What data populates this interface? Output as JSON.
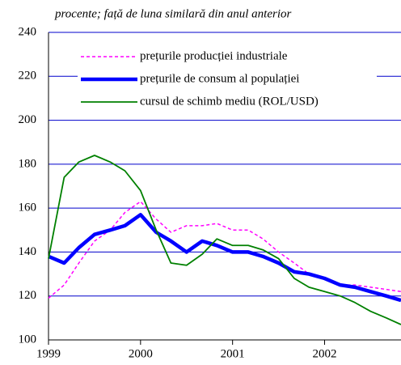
{
  "chart_data": {
    "type": "line",
    "subtitle": "procente; față de luna similară din anul anterior",
    "x": [
      1999.0,
      1999.17,
      1999.33,
      1999.5,
      1999.67,
      1999.83,
      2000.0,
      2000.17,
      2000.33,
      2000.5,
      2000.67,
      2000.83,
      2001.0,
      2001.17,
      2001.33,
      2001.5,
      2001.67,
      2001.83,
      2002.0,
      2002.17,
      2002.33,
      2002.5,
      2002.67,
      2002.83
    ],
    "series": [
      {
        "name": "prețurile producției industriale",
        "color": "#ff00ff",
        "style": "dashed",
        "values": [
          119,
          125,
          135,
          145,
          150,
          158,
          163,
          155,
          149,
          152,
          152,
          153,
          150,
          150,
          146,
          140,
          135,
          130,
          128,
          125,
          125,
          124,
          123,
          122
        ]
      },
      {
        "name": "prețurile de consum al populației",
        "color": "#0000ff",
        "style": "thick",
        "values": [
          138,
          135,
          142,
          148,
          150,
          152,
          157,
          149,
          145,
          140,
          145,
          143,
          140,
          140,
          138,
          135,
          131,
          130,
          128,
          125,
          124,
          122,
          120,
          118
        ]
      },
      {
        "name": "cursul de schimb mediu (ROL/USD)",
        "color": "#008000",
        "style": "solid",
        "values": [
          137,
          174,
          181,
          184,
          181,
          177,
          168,
          150,
          135,
          134,
          139,
          146,
          143,
          143,
          141,
          137,
          128,
          124,
          122,
          120,
          117,
          113,
          110,
          107
        ]
      }
    ],
    "xlim": [
      1999,
      2002.83
    ],
    "xticks": [
      1999,
      2000,
      2001,
      2002
    ],
    "ylim": [
      100,
      240
    ],
    "yticks": [
      100,
      120,
      140,
      160,
      180,
      200,
      220,
      240
    ],
    "grid": true
  }
}
